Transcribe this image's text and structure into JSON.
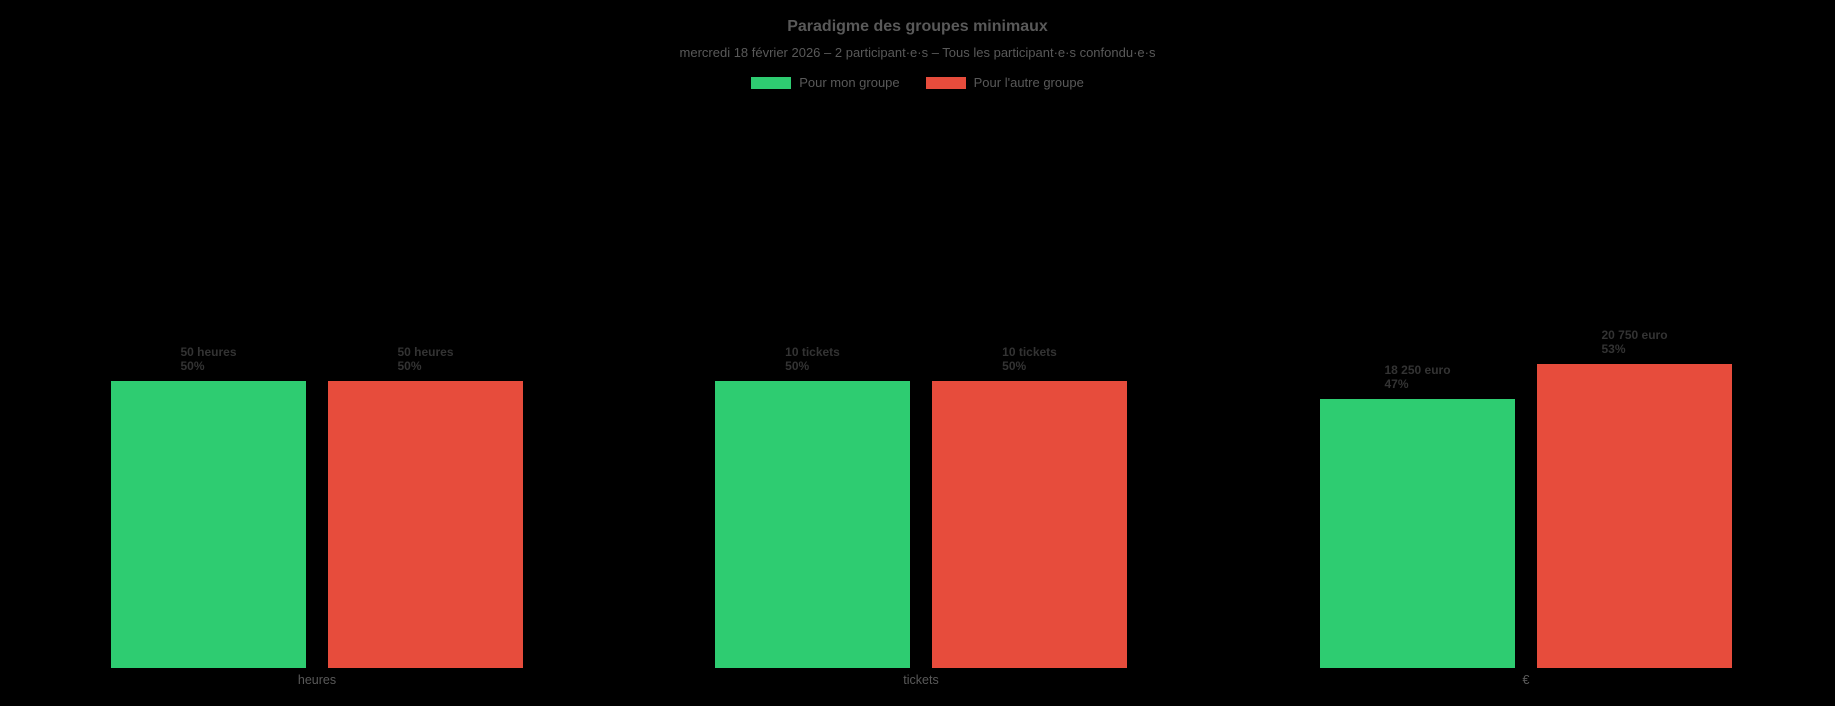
{
  "page": {
    "background_color": "#000000"
  },
  "chart_data": {
    "type": "bar",
    "title": "Paradigme des groupes minimaux",
    "subtitle": "mercredi 18 février 2026 – 2 participant·e·s – Tous les participant·e·s confondu·e·s",
    "legend_position": "top",
    "grid": false,
    "ylim": [
      0,
      100
    ],
    "y_unit": "percent (axis not shown)",
    "categories": [
      "heures",
      "tickets",
      "€"
    ],
    "series": [
      {
        "name": "Pour mon groupe",
        "color": "#2ecc71",
        "values": [
          50,
          10,
          18250
        ],
        "value_labels": [
          "50 heures",
          "10 tickets",
          "18 250 euro"
        ],
        "percents": [
          50,
          50,
          47
        ],
        "percent_labels": [
          "50%",
          "50%",
          "47%"
        ]
      },
      {
        "name": "Pour l'autre groupe",
        "color": "#e74c3c",
        "values": [
          50,
          10,
          20750
        ],
        "value_labels": [
          "50 heures",
          "10 tickets",
          "20 750 euro"
        ],
        "percents": [
          50,
          50,
          53
        ],
        "percent_labels": [
          "50%",
          "50%",
          "53%"
        ]
      }
    ]
  }
}
